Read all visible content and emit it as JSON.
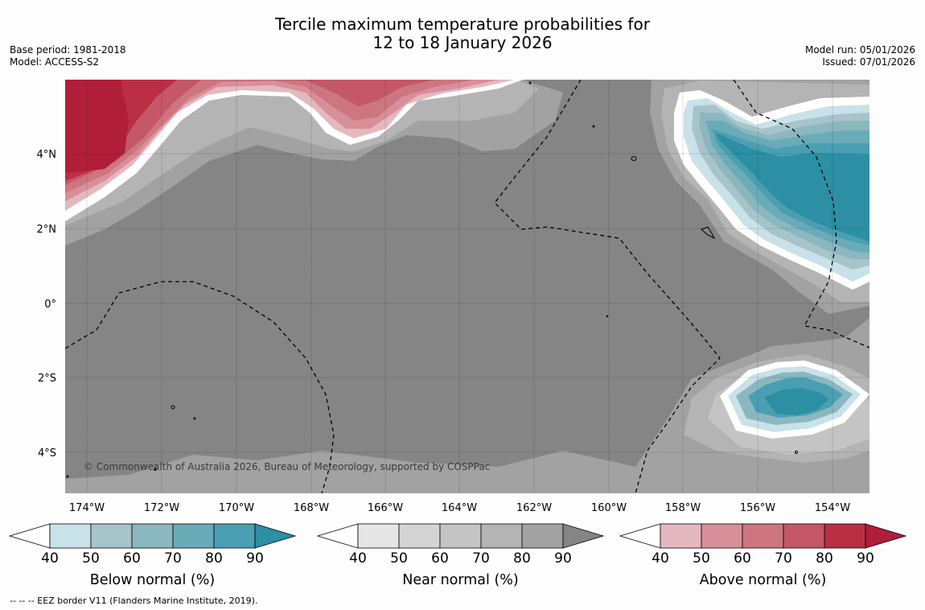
{
  "title": {
    "line1": "Tercile maximum temperature probabilities for",
    "line2": "12 to 18 January 2026"
  },
  "meta_left": {
    "base_period": "Base period: 1981-2018",
    "model": "Model: ACCESS-S2"
  },
  "meta_right": {
    "model_run": "Model run: 05/01/2026",
    "issued": "Issued: 07/01/2026"
  },
  "map": {
    "copyright": "© Commonwealth of Australia 2026, Bureau of Meteorology, supported by COSPPac",
    "lon_labels": [
      "174°W",
      "172°W",
      "170°W",
      "168°W",
      "166°W",
      "164°W",
      "162°W",
      "160°W",
      "158°W",
      "156°W",
      "154°W"
    ],
    "lat_labels": [
      "4°N",
      "2°N",
      "0°",
      "2°S",
      "4°S"
    ],
    "colors": {
      "background_near": "#858585",
      "near_levels": [
        "#e6e6e6",
        "#d4d4d4",
        "#c4c4c4",
        "#b4b4b4",
        "#a2a2a2"
      ],
      "below_levels": [
        "#c9e1e8",
        "#a6c4ca",
        "#8bb7bf",
        "#6aabb8",
        "#4a9fb2",
        "#2c8fa4"
      ],
      "above_levels": [
        "#e3b9bf",
        "#d88f99",
        "#cd7680",
        "#c45868",
        "#bb2f45",
        "#b01e3a"
      ]
    }
  },
  "colorbars": [
    {
      "title": "Below normal (%)",
      "ticks": [
        "40",
        "50",
        "60",
        "70",
        "80",
        "90"
      ],
      "colors": [
        "#ffffff",
        "#c9e1e8",
        "#a6c4ca",
        "#8bb7bf",
        "#6aabb8",
        "#4a9fb2",
        "#2c8fa4"
      ]
    },
    {
      "title": "Near normal (%)",
      "ticks": [
        "40",
        "50",
        "60",
        "70",
        "80",
        "90"
      ],
      "colors": [
        "#ffffff",
        "#e6e6e6",
        "#d4d4d4",
        "#c4c4c4",
        "#b4b4b4",
        "#a2a2a2",
        "#858585"
      ]
    },
    {
      "title": "Above normal (%)",
      "ticks": [
        "40",
        "50",
        "60",
        "70",
        "80",
        "90"
      ],
      "colors": [
        "#ffffff",
        "#e3b9bf",
        "#d88f99",
        "#cd7680",
        "#c45868",
        "#bb2f45",
        "#b01e3a"
      ]
    }
  ],
  "footnote": "--  --  -- EEZ border V11 (Flanders Marine Institute, 2019)."
}
